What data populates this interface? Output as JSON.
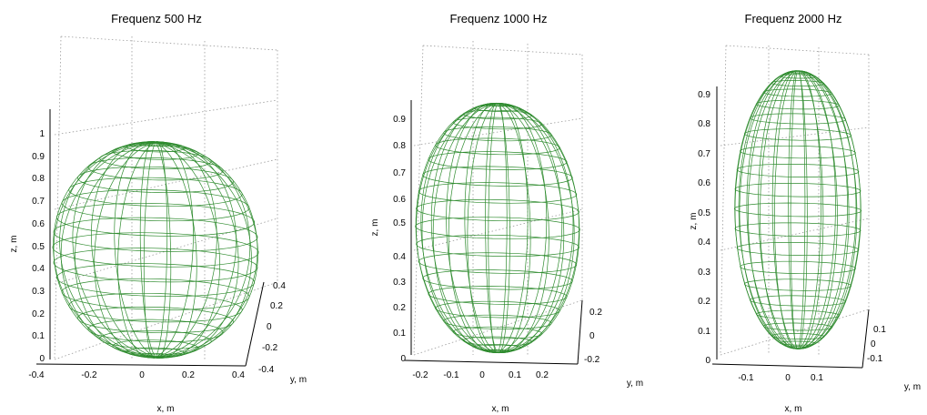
{
  "chart_data": [
    {
      "type": "wireframe-3d-ellipsoid",
      "title": "Frequenz 500 Hz",
      "xlabel": "x, m",
      "ylabel": "y, m",
      "zlabel": "z, m",
      "x_ticks": [
        "-0.4",
        "-0.2",
        "0",
        "0.2",
        "0.4"
      ],
      "y_ticks": [
        "0.4",
        "0.2",
        "0",
        "-0.2",
        "-0.4"
      ],
      "z_ticks": [
        "0",
        "0.1",
        "0.2",
        "0.3",
        "0.4",
        "0.5",
        "0.6",
        "0.7",
        "0.8",
        "0.9",
        "1"
      ],
      "xlim": [
        -0.4,
        0.4
      ],
      "ylim": [
        -0.4,
        0.4
      ],
      "zlim": [
        0,
        1.1
      ],
      "surface": {
        "center": [
          0,
          0,
          0.5
        ],
        "semi_axes": [
          0.4,
          0.4,
          0.48
        ]
      },
      "color": "#2e8b2e",
      "grid": true
    },
    {
      "type": "wireframe-3d-ellipsoid",
      "title": "Frequenz 1000 Hz",
      "xlabel": "x, m",
      "ylabel": "y, m",
      "zlabel": "z, m",
      "x_ticks": [
        "-0.2",
        "-0.1",
        "0",
        "0.1",
        "0.2"
      ],
      "y_ticks": [
        "0.2",
        "0",
        "-0.2"
      ],
      "z_ticks": [
        "0",
        "0.1",
        "0.2",
        "0.3",
        "0.4",
        "0.5",
        "0.6",
        "0.7",
        "0.8",
        "0.9"
      ],
      "xlim": [
        -0.25,
        0.25
      ],
      "ylim": [
        -0.25,
        0.25
      ],
      "zlim": [
        0,
        1
      ],
      "surface": {
        "center": [
          0,
          0,
          0.5
        ],
        "semi_axes": [
          0.25,
          0.25,
          0.48
        ]
      },
      "color": "#2e8b2e",
      "grid": true
    },
    {
      "type": "wireframe-3d-ellipsoid",
      "title": "Frequenz 2000 Hz",
      "xlabel": "x, m",
      "ylabel": "y, m",
      "zlabel": "z, m",
      "x_ticks": [
        "-0.1",
        "0",
        "0.1"
      ],
      "y_ticks": [
        "0.1",
        "0",
        "-0.1"
      ],
      "z_ticks": [
        "0",
        "0.1",
        "0.2",
        "0.3",
        "0.4",
        "0.5",
        "0.6",
        "0.7",
        "0.8",
        "0.9"
      ],
      "xlim": [
        -0.15,
        0.15
      ],
      "ylim": [
        -0.15,
        0.15
      ],
      "zlim": [
        0,
        1
      ],
      "surface": {
        "center": [
          0,
          0,
          0.5
        ],
        "semi_axes": [
          0.15,
          0.15,
          0.47
        ]
      },
      "color": "#2e8b2e",
      "grid": true
    }
  ]
}
